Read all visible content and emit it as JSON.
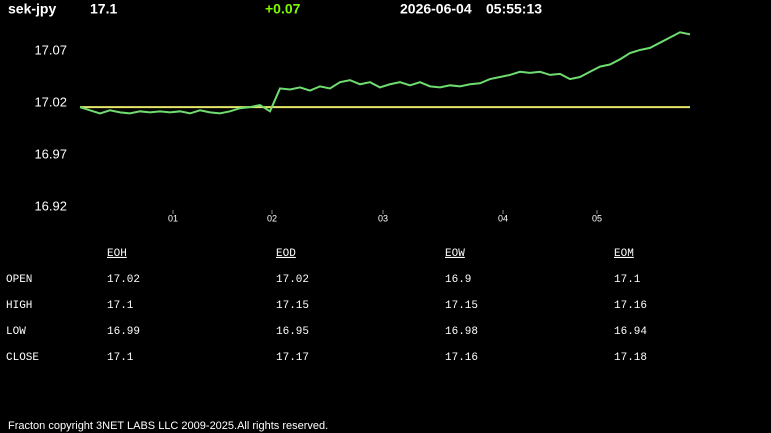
{
  "header": {
    "symbol": "sek-jpy",
    "price": "17.1",
    "change": "+0.07",
    "date": "2026-06-04",
    "time": "05:55:13"
  },
  "chart_data": {
    "type": "line",
    "color": "#6fdc6f",
    "values": [
      17.016,
      17.013,
      17.01,
      17.013,
      17.011,
      17.01,
      17.012,
      17.011,
      17.012,
      17.011,
      17.012,
      17.01,
      17.013,
      17.011,
      17.01,
      17.012,
      17.015,
      17.016,
      17.018,
      17.012,
      17.034,
      17.033,
      17.035,
      17.032,
      17.036,
      17.034,
      17.04,
      17.042,
      17.038,
      17.04,
      17.035,
      17.038,
      17.04,
      17.037,
      17.04,
      17.036,
      17.035,
      17.037,
      17.036,
      17.038,
      17.039,
      17.043,
      17.045,
      17.047,
      17.05,
      17.049,
      17.05,
      17.047,
      17.048,
      17.043,
      17.045,
      17.05,
      17.055,
      17.057,
      17.062,
      17.068,
      17.071,
      17.073,
      17.078,
      17.083,
      17.088,
      17.086
    ],
    "reference_line": 17.016,
    "reference_color": "#e6e66a",
    "ylim": [
      16.92,
      17.1
    ],
    "yticks": [
      16.92,
      16.97,
      17.02,
      17.07
    ],
    "xlim": [
      0,
      61
    ],
    "xticks": [
      {
        "value": 9.3,
        "label": "01"
      },
      {
        "value": 19.2,
        "label": "02"
      },
      {
        "value": 30.3,
        "label": "03"
      },
      {
        "value": 42.3,
        "label": "04"
      },
      {
        "value": 51.7,
        "label": "05"
      }
    ]
  },
  "table": {
    "columns": [
      "EOH",
      "EOD",
      "EOW",
      "EOM"
    ],
    "rows": [
      [
        "OPEN",
        "17.02",
        "17.02",
        "16.9",
        "17.1"
      ],
      [
        "HIGH",
        "17.1",
        "17.15",
        "17.15",
        "17.16"
      ],
      [
        "LOW",
        "16.99",
        "16.95",
        "16.98",
        "16.94"
      ],
      [
        "CLOSE",
        "17.1",
        "17.17",
        "17.16",
        "17.18"
      ]
    ]
  },
  "footer": "Fracton copyright 3NET LABS LLC 2009-2025.All rights reserved."
}
